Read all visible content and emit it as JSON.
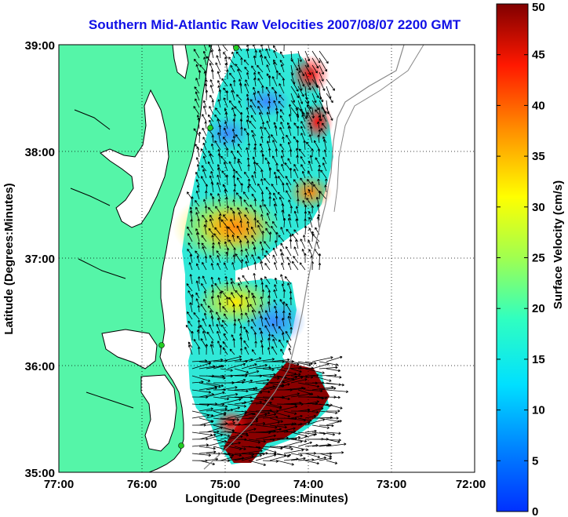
{
  "title": "Southern Mid-Atlantic Raw Velocities 2007/08/07 2200 GMT",
  "x_axis": {
    "label": "Longitude (Degrees:Minutes)",
    "ticks": [
      "77:00",
      "76:00",
      "75:00",
      "74:00",
      "73:00",
      "72:00"
    ]
  },
  "y_axis": {
    "label": "Latitude (Degrees:Minutes)",
    "ticks": [
      "39:00",
      "38:00",
      "37:00",
      "36:00",
      "35:00"
    ]
  },
  "colorbar": {
    "label": "Surface Velocity (cm/s)",
    "ticks": [
      "50",
      "45",
      "40",
      "35",
      "30",
      "25",
      "20",
      "15",
      "10",
      "5",
      "0"
    ],
    "range": [
      0,
      50
    ],
    "colormap": "jet"
  },
  "colors": {
    "title": "#1010e6",
    "land": "#55f5a8",
    "coastline": "#000000",
    "bathymetry": "#888888",
    "station_marker": "#22cc22",
    "gridline": "#000000"
  },
  "map_extent": {
    "lon": [
      -77,
      -72
    ],
    "lat": [
      35,
      39
    ]
  }
}
